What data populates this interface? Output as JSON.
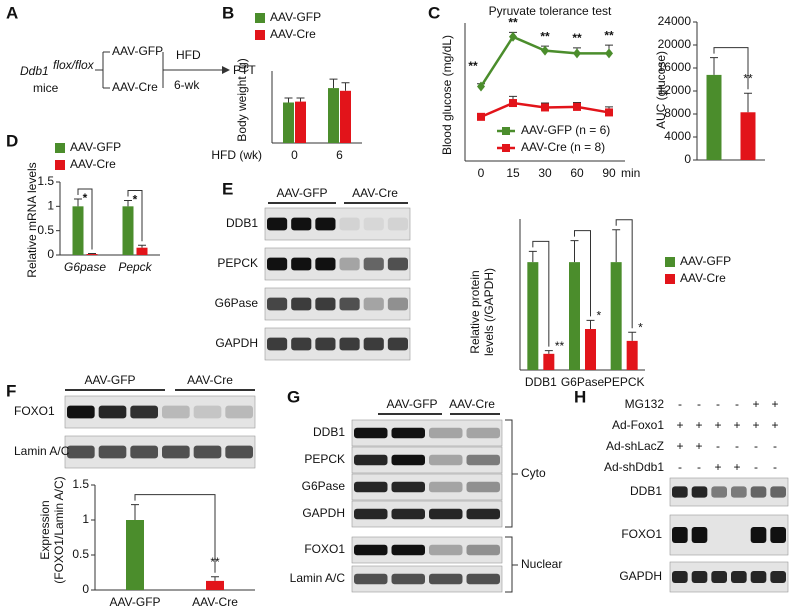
{
  "panel_labels": [
    "A",
    "B",
    "C",
    "D",
    "E",
    "F",
    "G",
    "H"
  ],
  "schematic": {
    "strain": "Ddb1",
    "strain_superscript": "flox/flox",
    "mice": "mice",
    "arms": [
      "AAV-GFP",
      "AAV-Cre"
    ],
    "treatment": "HFD",
    "duration": "6-wk",
    "readout": "PTT"
  },
  "blot_E": {
    "groups": [
      "AAV-GFP",
      "AAV-Cre"
    ],
    "rows": [
      "DDB1",
      "PEPCK",
      "G6Pase",
      "GAPDH"
    ]
  },
  "blot_F": {
    "groups": [
      "AAV-GFP",
      "AAV-Cre"
    ],
    "rows": [
      "FOXO1",
      "Lamin A/C"
    ]
  },
  "blot_G": {
    "groups": [
      "AAV-GFP",
      "AAV-Cre"
    ],
    "rows": [
      "DDB1",
      "PEPCK",
      "G6Pase",
      "GAPDH",
      "FOXO1",
      "Lamin A/C"
    ],
    "fractions": [
      "Cyto",
      "Nuclear"
    ]
  },
  "blot_H": {
    "conditions": [
      {
        "label": "MG132",
        "lanes": [
          "-",
          "-",
          "-",
          "-",
          "+",
          "+"
        ]
      },
      {
        "label": "Ad-Foxo1",
        "lanes": [
          "+",
          "+",
          "+",
          "+",
          "+",
          "+"
        ]
      },
      {
        "label": "Ad-shLacZ",
        "lanes": [
          "+",
          "+",
          "-",
          "-",
          "-",
          "-"
        ]
      },
      {
        "label": "Ad-shDdb1",
        "lanes": [
          "-",
          "-",
          "+",
          "+",
          "-",
          "-"
        ]
      }
    ],
    "rows": [
      "DDB1",
      "FOXO1",
      "GAPDH"
    ]
  },
  "chart_data": [
    {
      "type": "bar",
      "y_label": "Body weight (g)",
      "x_label": "HFD (wk)",
      "categories": [
        "0",
        "6"
      ],
      "series": [
        {
          "name": "AAV-GFP",
          "color": "#4b8d2c",
          "values": [
            22.5,
            30.5
          ],
          "errors": [
            2.5,
            5
          ]
        },
        {
          "name": "AAV-Cre",
          "color": "#e2141a",
          "values": [
            23,
            29
          ],
          "errors": [
            2,
            4.5
          ]
        }
      ],
      "ylim": [
        0,
        40
      ]
    },
    {
      "type": "line",
      "title": "Pyruvate tolerance test",
      "y_label": "Blood glucose (mg/dL)",
      "x_label": "min",
      "categories": [
        "0",
        "15",
        "30",
        "60",
        "90"
      ],
      "series": [
        {
          "name": "AAV-GFP (n = 6)",
          "color": "#4b8d2c",
          "values": [
            135,
            225,
            200,
            195,
            195
          ],
          "errors": [
            5,
            8,
            8,
            10,
            15
          ]
        },
        {
          "name": "AAV-Cre (n = 8)",
          "color": "#e2141a",
          "values": [
            80,
            105,
            97,
            98,
            88
          ],
          "errors": [
            5,
            12,
            8,
            8,
            10
          ]
        }
      ],
      "ylim": [
        0,
        250
      ],
      "annotations": [
        "**",
        "**",
        "**",
        "**",
        "**"
      ]
    },
    {
      "type": "bar",
      "y_label": "AUC (glucose)",
      "values": [
        14800,
        8300
      ],
      "errors": [
        3000,
        3300
      ],
      "colors": [
        "#4b8d2c",
        "#e2141a"
      ],
      "ylim": [
        0,
        24000
      ],
      "yticks": [
        0,
        4000,
        8000,
        12000,
        16000,
        20000,
        24000
      ],
      "annotations": [
        null,
        "**"
      ]
    },
    {
      "type": "bar",
      "y_label": "Relative mRNA levels",
      "categories": [
        "G6pase",
        "Pepck"
      ],
      "series": [
        {
          "name": "AAV-GFP",
          "color": "#4b8d2c",
          "values": [
            1,
            1
          ],
          "errors": [
            0.15,
            0.12
          ]
        },
        {
          "name": "AAV-Cre",
          "color": "#e2141a",
          "values": [
            0.02,
            0.15
          ],
          "errors": [
            0.01,
            0.05
          ]
        }
      ],
      "ylim": [
        0,
        1.5
      ],
      "yticks": [
        0,
        0.5,
        1,
        1.5
      ],
      "annotations": [
        "*",
        "*"
      ]
    },
    {
      "type": "bar",
      "y_label": [
        "Relative  protein",
        "levels (/GAPDH)"
      ],
      "categories": [
        "DDB1",
        "G6Pase",
        "PEPCK"
      ],
      "series": [
        {
          "name": "AAV-GFP",
          "color": "#4b8d2c",
          "values": [
            1,
            1,
            1
          ],
          "errors": [
            0.1,
            0.2,
            0.3
          ]
        },
        {
          "name": "AAV-Cre",
          "color": "#e2141a",
          "values": [
            0.15,
            0.38,
            0.27
          ],
          "errors": [
            0.03,
            0.08,
            0.08
          ]
        }
      ],
      "ylim": [
        0,
        1.4
      ],
      "annotations": [
        "**",
        "*",
        "*"
      ]
    },
    {
      "type": "bar",
      "y_label": [
        "Expression",
        "(FOXO1/Lamin A/C)"
      ],
      "categories": [
        "AAV-GFP",
        "AAV-Cre"
      ],
      "values": [
        1,
        0.13
      ],
      "errors": [
        0.22,
        0.06
      ],
      "colors": [
        "#4b8d2c",
        "#e2141a"
      ],
      "ylim": [
        0,
        1.5
      ],
      "yticks": [
        0,
        0.5,
        1,
        1.5
      ],
      "annotations": [
        null,
        "**"
      ]
    }
  ]
}
